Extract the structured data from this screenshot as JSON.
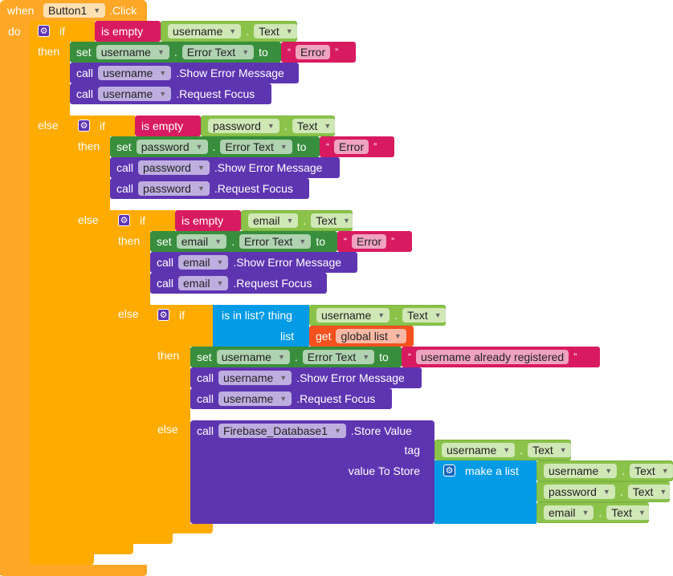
{
  "event": {
    "when": "when",
    "component": "Button1",
    "event": ".Click",
    "do": "do"
  },
  "keywords": {
    "if": "if",
    "then": "then",
    "else": "else",
    "set": "set",
    "to": "to",
    "call": "call",
    "is_empty": "is empty",
    "dot": ".",
    "open_quote": "“",
    "close_quote": "”",
    "settings_icon": "gear-icon"
  },
  "if1": {
    "cond_component": "username",
    "cond_prop": "Text",
    "set_component": "username",
    "set_prop": "Error Text",
    "text": "Error",
    "call1_component": "username",
    "call1_method": ".Show Error Message",
    "call2_component": "username",
    "call2_method": ".Request Focus"
  },
  "if2": {
    "cond_component": "password",
    "cond_prop": "Text",
    "set_component": "password",
    "set_prop": "Error Text",
    "text": "Error",
    "call1_component": "password",
    "call1_method": ".Show Error Message",
    "call2_component": "password",
    "call2_method": ".Request Focus"
  },
  "if3": {
    "cond_component": "email",
    "cond_prop": "Text",
    "set_component": "email",
    "set_prop": "Error Text",
    "text": "Error",
    "call1_component": "email",
    "call1_method": ".Show Error Message",
    "call2_component": "email",
    "call2_method": ".Request Focus"
  },
  "if4": {
    "is_in_list": "is in list? thing",
    "list_label": "list",
    "cond_component": "username",
    "cond_prop": "Text",
    "get": "get",
    "global_var": "global list",
    "set_component": "username",
    "set_prop": "Error Text",
    "text": "username already registered",
    "call1_component": "username",
    "call1_method": ".Show Error Message",
    "call2_component": "username",
    "call2_method": ".Request Focus"
  },
  "store": {
    "component": "Firebase_Database1",
    "method": ".Store Value",
    "tag_label": "tag",
    "tag_component": "username",
    "tag_prop": "Text",
    "value_label": "value To Store",
    "make_list": "make a list",
    "items": [
      {
        "component": "username",
        "prop": "Text"
      },
      {
        "component": "password",
        "prop": "Text"
      },
      {
        "component": "email",
        "prop": "Text"
      }
    ]
  },
  "colors": {
    "event": "#ffa726",
    "control": "#ffab00",
    "text": "#d81b60",
    "getter": "#8bc34a",
    "setter": "#388e3c",
    "method": "#5e35b1",
    "list": "#039be5",
    "variable": "#f4511e"
  }
}
